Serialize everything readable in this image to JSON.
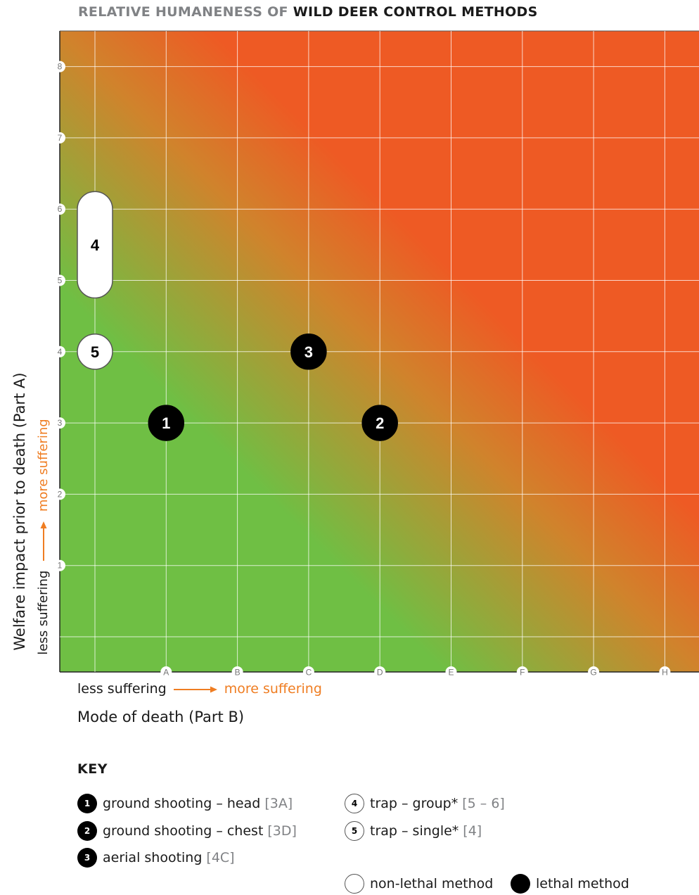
{
  "chart_data": {
    "type": "scatter",
    "title_light": "RELATIVE HUMANENESS OF",
    "title_bold": "WILD DEER CONTROL METHODS",
    "xlabel": "Mode of death (Part B)",
    "ylabel": "Welfare impact prior to death (Part A)",
    "x_less": "less suffering",
    "x_more": "more suffering",
    "y_less": "less suffering",
    "y_more": "more suffering",
    "x_categories": [
      "A",
      "B",
      "C",
      "D",
      "E",
      "F",
      "G",
      "H"
    ],
    "y_ticks": [
      "1",
      "2",
      "3",
      "4",
      "5",
      "6",
      "7",
      "8"
    ],
    "background": "gradient green (low) to red (high)",
    "colors": {
      "green": "#6fbf44",
      "orange": "#d0832c",
      "red": "#ee5a24",
      "accent": "#ef7d22"
    },
    "points": [
      {
        "id": "1",
        "x": "A",
        "y": 3,
        "type": "lethal"
      },
      {
        "id": "2",
        "x": "D",
        "y": 3,
        "type": "lethal"
      },
      {
        "id": "3",
        "x": "C",
        "y": 4,
        "type": "lethal"
      },
      {
        "id": "4",
        "y_from": 5,
        "y_to": 6,
        "type": "non-lethal"
      },
      {
        "id": "5",
        "y": 4,
        "type": "non-lethal"
      }
    ]
  },
  "key": {
    "title": "KEY",
    "items": [
      {
        "num": "1",
        "label": "ground shooting – head",
        "code": "[3A]",
        "type": "lethal"
      },
      {
        "num": "2",
        "label": "ground shooting – chest",
        "code": "[3D]",
        "type": "lethal"
      },
      {
        "num": "3",
        "label": "aerial shooting",
        "code": "[4C]",
        "type": "lethal"
      },
      {
        "num": "4",
        "label": "trap – group*",
        "code": "[5 – 6]",
        "type": "non-lethal"
      },
      {
        "num": "5",
        "label": "trap – single*",
        "code": "[4]",
        "type": "non-lethal"
      }
    ],
    "legend_nonlethal": "non-lethal method",
    "legend_lethal": "lethal method"
  }
}
